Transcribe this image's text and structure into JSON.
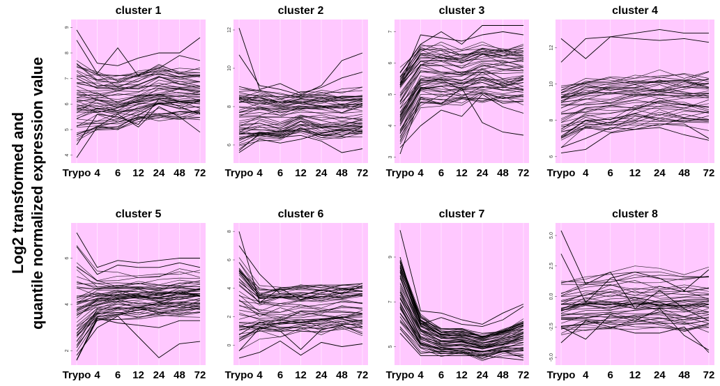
{
  "ylabel_lines": [
    "Log2 transformed and",
    "quantile normalized expression value"
  ],
  "chart_data": [
    {
      "type": "line",
      "title": "cluster 1",
      "categories": [
        "Trypo",
        "4",
        "6",
        "12",
        "24",
        "48",
        "72"
      ],
      "yticks": [
        4,
        5,
        6,
        7,
        8,
        9
      ],
      "ylim": [
        3.8,
        9.2
      ],
      "band": {
        "center": [
          6.2,
          6.2,
          6.1,
          6.3,
          6.5,
          6.4,
          6.4
        ],
        "spread": [
          1.6,
          1.2,
          1.1,
          1.0,
          1.1,
          1.0,
          1.0
        ]
      },
      "outliers": [
        [
          8.9,
          7.6,
          7.5,
          7.8,
          8.0,
          8.0,
          8.6
        ],
        [
          8.5,
          7.2,
          8.2,
          7.1,
          7.4,
          7.9,
          7.7
        ],
        [
          3.9,
          5.1,
          5.6,
          5.1,
          5.9,
          5.5,
          4.9
        ],
        [
          4.4,
          5.6,
          5.5,
          5.2,
          6.2,
          5.9,
          5.6
        ]
      ],
      "n_lines": 55,
      "background": "#ffc8ff"
    },
    {
      "type": "line",
      "title": "cluster 2",
      "categories": [
        "Trypo",
        "4",
        "6",
        "12",
        "24",
        "48",
        "72"
      ],
      "yticks": [
        6,
        8,
        10,
        12
      ],
      "ylim": [
        5.2,
        12.4
      ],
      "band": {
        "center": [
          7.5,
          7.6,
          7.5,
          7.7,
          7.6,
          7.6,
          7.7
        ],
        "spread": [
          1.6,
          1.4,
          1.3,
          1.1,
          1.3,
          1.3,
          1.3
        ]
      },
      "outliers": [
        [
          12.1,
          8.9,
          9.2,
          8.7,
          9.0,
          9.5,
          9.8
        ],
        [
          10.7,
          9.1,
          8.9,
          8.6,
          9.1,
          10.4,
          10.8
        ],
        [
          5.6,
          6.3,
          6.1,
          6.3,
          6.6,
          6.8,
          6.7
        ],
        [
          5.7,
          6.6,
          6.4,
          6.5,
          6.2,
          5.6,
          5.8
        ]
      ],
      "n_lines": 55,
      "background": "#ffc8ff"
    },
    {
      "type": "line",
      "title": "cluster 3",
      "categories": [
        "Trypo",
        "4",
        "6",
        "12",
        "24",
        "48",
        "72"
      ],
      "yticks": [
        3,
        4,
        5,
        6,
        7
      ],
      "ylim": [
        2.9,
        7.3
      ],
      "band": {
        "center": [
          4.6,
          5.6,
          5.6,
          5.5,
          5.7,
          5.6,
          5.6
        ],
        "spread": [
          1.2,
          1.0,
          1.0,
          0.9,
          1.0,
          1.0,
          1.0
        ]
      },
      "outliers": [
        [
          5.7,
          6.6,
          7.0,
          6.6,
          7.2,
          7.2,
          7.2
        ],
        [
          3.1,
          4.9,
          4.7,
          5.2,
          4.1,
          3.8,
          3.7
        ],
        [
          3.3,
          4.0,
          4.5,
          4.3,
          5.0,
          4.6,
          4.4
        ],
        [
          5.3,
          6.9,
          6.8,
          6.7,
          6.9,
          7.0,
          6.9
        ]
      ],
      "n_lines": 55,
      "background": "#ffc8ff"
    },
    {
      "type": "line",
      "title": "cluster 4",
      "categories": [
        "Trypo",
        "4",
        "6",
        "12",
        "24",
        "48",
        "72"
      ],
      "yticks": [
        6,
        8,
        10,
        12
      ],
      "ylim": [
        5.8,
        13.4
      ],
      "band": {
        "center": [
          8.5,
          9.0,
          9.0,
          9.2,
          9.3,
          9.3,
          9.3
        ],
        "spread": [
          2.0,
          1.8,
          1.8,
          1.7,
          1.7,
          1.7,
          1.8
        ]
      },
      "outliers": [
        [
          12.5,
          11.4,
          12.6,
          12.8,
          13.0,
          12.8,
          12.8
        ],
        [
          11.2,
          12.5,
          12.6,
          12.5,
          12.4,
          12.5,
          12.3
        ],
        [
          6.2,
          6.4,
          7.3,
          7.5,
          7.8,
          7.8,
          7.0
        ],
        [
          6.5,
          7.0,
          7.6,
          7.5,
          7.6,
          7.2,
          6.9
        ]
      ],
      "n_lines": 45,
      "background": "#ffc8ff"
    },
    {
      "type": "line",
      "title": "cluster 5",
      "categories": [
        "Trypo",
        "4",
        "6",
        "12",
        "24",
        "48",
        "72"
      ],
      "yticks": [
        2,
        4,
        6
      ],
      "ylim": [
        1.5,
        7.4
      ],
      "band": {
        "center": [
          4.0,
          4.3,
          4.4,
          4.4,
          4.4,
          4.5,
          4.5
        ],
        "spread": [
          2.4,
          1.1,
          1.0,
          1.0,
          1.0,
          1.0,
          1.0
        ]
      },
      "outliers": [
        [
          7.1,
          5.6,
          5.9,
          5.8,
          5.9,
          6.0,
          6.0
        ],
        [
          6.5,
          5.3,
          5.7,
          5.6,
          5.6,
          5.8,
          5.6
        ],
        [
          1.6,
          3.4,
          3.2,
          3.1,
          3.0,
          3.3,
          3.3
        ],
        [
          1.8,
          3.0,
          3.5,
          2.6,
          1.7,
          2.3,
          2.4
        ]
      ],
      "n_lines": 55,
      "background": "#ffc8ff"
    },
    {
      "type": "line",
      "title": "cluster 6",
      "categories": [
        "Trypo",
        "4",
        "6",
        "12",
        "24",
        "48",
        "72"
      ],
      "yticks": [
        0,
        2,
        4,
        6,
        8
      ],
      "ylim": [
        -1.2,
        8.4
      ],
      "band": {
        "center": [
          2.8,
          2.3,
          2.4,
          2.5,
          2.5,
          2.6,
          2.6
        ],
        "spread": [
          3.4,
          1.8,
          1.8,
          1.8,
          1.8,
          1.8,
          1.9
        ]
      },
      "outliers": [
        [
          8.0,
          3.0,
          4.0,
          3.2,
          3.7,
          4.0,
          3.8
        ],
        [
          7.0,
          5.0,
          3.6,
          3.5,
          3.9,
          3.6,
          4.2
        ],
        [
          -0.9,
          -0.5,
          0.3,
          -0.7,
          0.2,
          -0.1,
          0.1
        ],
        [
          -0.4,
          1.2,
          1.0,
          -0.3,
          1.1,
          1.4,
          0.8
        ]
      ],
      "n_lines": 50,
      "background": "#ffc8ff"
    },
    {
      "type": "line",
      "title": "cluster 7",
      "categories": [
        "Trypo",
        "4",
        "6",
        "12",
        "24",
        "48",
        "72"
      ],
      "yticks": [
        5,
        7,
        9
      ],
      "ylim": [
        4.3,
        10.4
      ],
      "band": {
        "center": [
          7.4,
          5.6,
          5.2,
          5.2,
          5.0,
          5.2,
          5.4
        ],
        "spread": [
          1.6,
          0.8,
          0.6,
          0.6,
          0.6,
          0.6,
          0.8
        ]
      },
      "outliers": [
        [
          10.2,
          6.6,
          6.5,
          6.2,
          6.0,
          6.5,
          6.9
        ],
        [
          9.0,
          6.0,
          6.3,
          6.0,
          5.9,
          6.2,
          6.8
        ],
        [
          5.6,
          4.6,
          4.6,
          4.6,
          4.6,
          4.5,
          4.4
        ],
        [
          5.8,
          4.7,
          4.8,
          4.7,
          4.8,
          4.8,
          4.5
        ]
      ],
      "n_lines": 55,
      "background": "#ffc8ff"
    },
    {
      "type": "line",
      "title": "cluster 8",
      "categories": [
        "Trypo",
        "4",
        "6",
        "12",
        "24",
        "48",
        "72"
      ],
      "yticks": [
        -5.0,
        -2.5,
        0.0,
        2.5,
        5.0
      ],
      "ylim": [
        -5.4,
        5.8
      ],
      "band": {
        "center": [
          -0.7,
          -0.4,
          -0.3,
          -0.2,
          -0.2,
          -0.3,
          -0.3
        ],
        "spread": [
          2.3,
          2.3,
          2.5,
          2.5,
          2.5,
          2.5,
          2.6
        ]
      },
      "outliers": [
        [
          5.4,
          1.0,
          2.0,
          -1.0,
          0.5,
          -1.0,
          -2.0
        ],
        [
          3.5,
          -0.5,
          1.5,
          2.0,
          1.5,
          0.5,
          2.2
        ],
        [
          -3.8,
          -2.0,
          -2.5,
          -3.0,
          -3.0,
          -2.5,
          -4.6
        ],
        [
          -2.5,
          -3.5,
          -1.5,
          -2.0,
          -1.0,
          -3.2,
          -4.4
        ]
      ],
      "n_lines": 45,
      "background": "#ffc8ff"
    }
  ]
}
